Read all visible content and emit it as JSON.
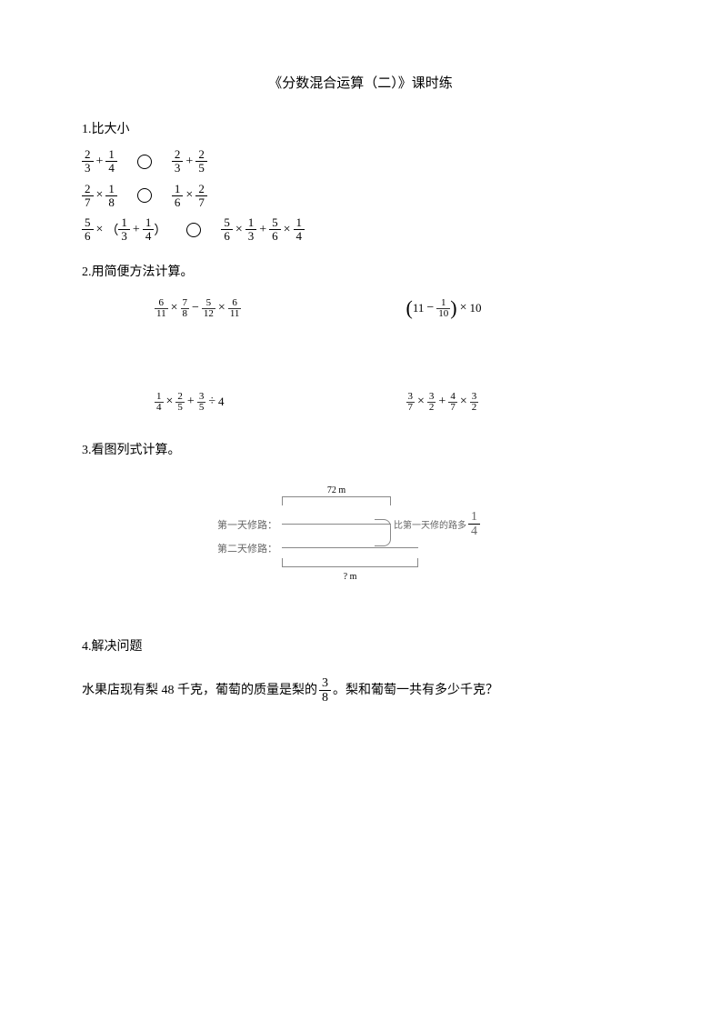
{
  "title": "《分数混合运算（二）》课时练",
  "q1": {
    "header": "1.比大小",
    "rows": [
      {
        "left": [
          {
            "n": "2",
            "d": "3"
          },
          {
            "op": "+"
          },
          {
            "n": "1",
            "d": "4"
          }
        ],
        "right": [
          {
            "n": "2",
            "d": "3"
          },
          {
            "op": "+"
          },
          {
            "n": "2",
            "d": "5"
          }
        ]
      },
      {
        "left": [
          {
            "n": "2",
            "d": "7"
          },
          {
            "op": "×"
          },
          {
            "n": "1",
            "d": "8"
          }
        ],
        "right": [
          {
            "n": "1",
            "d": "6"
          },
          {
            "op": "×"
          },
          {
            "n": "2",
            "d": "7"
          }
        ]
      },
      {
        "left": [
          {
            "n": "5",
            "d": "6"
          },
          {
            "op": "×"
          },
          {
            "text": "（"
          },
          {
            "n": "1",
            "d": "3"
          },
          {
            "op": "+"
          },
          {
            "n": "1",
            "d": "4"
          },
          {
            "text": "）"
          }
        ],
        "right": [
          {
            "n": "5",
            "d": "6"
          },
          {
            "op": "×"
          },
          {
            "n": "1",
            "d": "3"
          },
          {
            "op": "+"
          },
          {
            "n": "5",
            "d": "6"
          },
          {
            "op": "×"
          },
          {
            "n": "1",
            "d": "4"
          }
        ]
      }
    ]
  },
  "q2": {
    "header": "2.用简便方法计算。",
    "items": [
      [
        {
          "n": "6",
          "d": "11"
        },
        {
          "op": "×"
        },
        {
          "n": "7",
          "d": "8"
        },
        {
          "op": "−"
        },
        {
          "n": "5",
          "d": "12"
        },
        {
          "op": "×"
        },
        {
          "n": "6",
          "d": "11"
        }
      ],
      [
        {
          "lp": true
        },
        {
          "text": "11"
        },
        {
          "op": "−"
        },
        {
          "n": "1",
          "d": "10"
        },
        {
          "rp": true
        },
        {
          "op": "×"
        },
        {
          "text": "10"
        }
      ],
      [
        {
          "n": "1",
          "d": "4"
        },
        {
          "op": "×"
        },
        {
          "n": "2",
          "d": "5"
        },
        {
          "op": "+"
        },
        {
          "n": "3",
          "d": "5"
        },
        {
          "op": "÷"
        },
        {
          "text": "4"
        }
      ],
      [
        {
          "n": "3",
          "d": "7"
        },
        {
          "op": "×"
        },
        {
          "n": "3",
          "d": "2"
        },
        {
          "op": "+"
        },
        {
          "n": "4",
          "d": "7"
        },
        {
          "op": "×"
        },
        {
          "n": "3",
          "d": "2"
        }
      ]
    ]
  },
  "q3": {
    "header": "3.看图列式计算。",
    "top_measure": "72 m",
    "label1": "第一天修路：",
    "label2": "第二天修路：",
    "side_text": "比第一天修的路多",
    "side_frac": {
      "n": "1",
      "d": "4"
    },
    "bottom_measure": "? m"
  },
  "q4": {
    "header": "4.解决问题",
    "text_before": "水果店现有梨 48 千克，葡萄的质量是梨的",
    "frac": {
      "n": "3",
      "d": "8"
    },
    "text_after": "。梨和葡萄一共有多少千克？"
  },
  "colors": {
    "text": "#000000",
    "bg": "#ffffff",
    "diag_text": "#666666",
    "diag_border": "#888888"
  }
}
